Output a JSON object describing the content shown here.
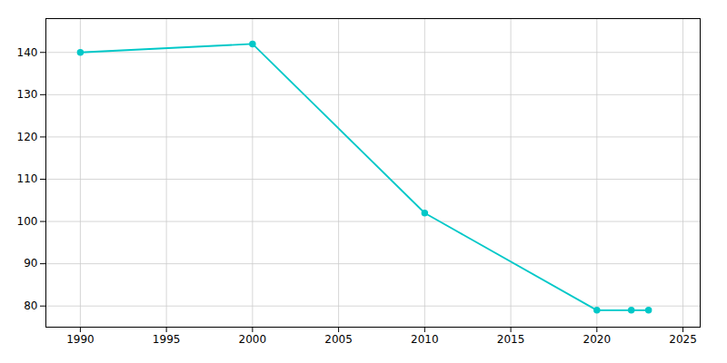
{
  "chart_data": {
    "type": "line",
    "x": [
      1990,
      2000,
      2010,
      2020,
      2022,
      2023
    ],
    "values": [
      140,
      142,
      102,
      79,
      79,
      79
    ],
    "color": "#00c8c8",
    "marker": "circle",
    "xlim": [
      1988,
      2026
    ],
    "ylim": [
      75,
      148
    ],
    "xticks": [
      1990,
      1995,
      2000,
      2005,
      2010,
      2015,
      2020,
      2025
    ],
    "yticks": [
      80,
      90,
      100,
      110,
      120,
      130,
      140
    ],
    "grid": true
  }
}
